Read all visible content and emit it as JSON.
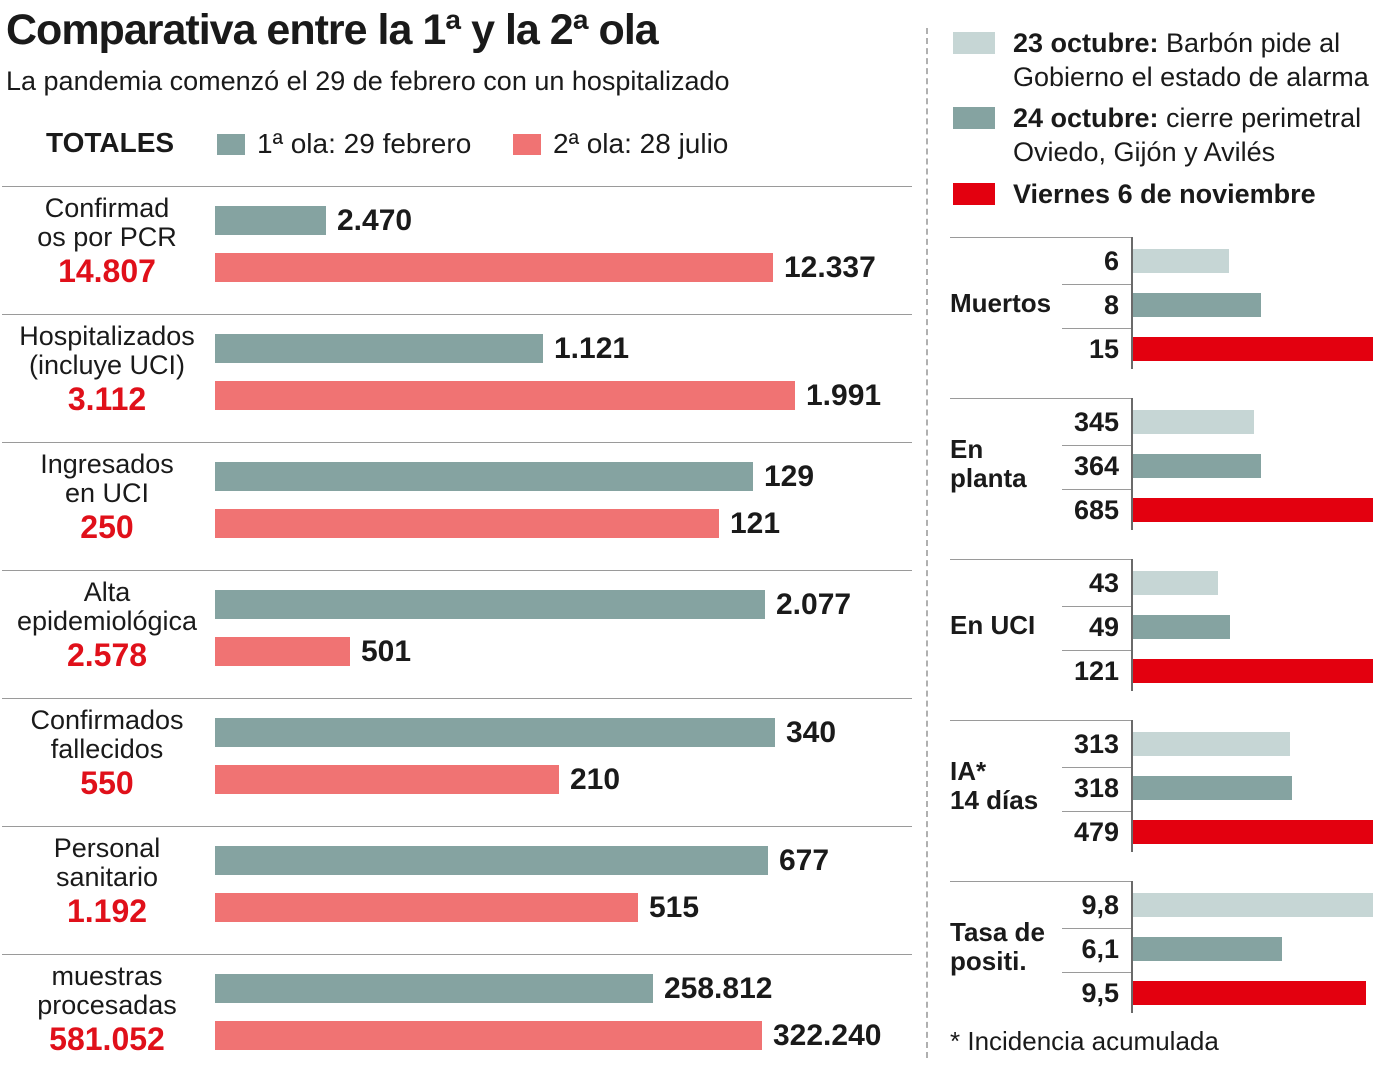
{
  "title": "Comparativa entre la 1ª y la 2ª ola",
  "subtitle": "La pandemia comenzó el 29 de febrero con un hospitalizado",
  "totales_label": "TOTALES",
  "colors": {
    "wave1": "#85a3a1",
    "wave2": "#f07373",
    "oct23": "#c6d6d5",
    "oct24": "#85a3a1",
    "nov6": "#e3000f",
    "total": "#e0101a"
  },
  "chart_data": [
    {
      "type": "bar",
      "orientation": "horizontal",
      "title": "Comparativa entre la 1ª y la 2ª ola",
      "legend": [
        "1ª ola: 29 febrero",
        "2ª ola: 28 julio"
      ],
      "categories": [
        {
          "lines": [
            "Confirmad",
            "os por PCR"
          ],
          "total": "14.807",
          "v1": 2470,
          "v2": 12337,
          "l1": "2.470",
          "l2": "12.337"
        },
        {
          "lines": [
            "Hospitalizados",
            "(incluye UCI)"
          ],
          "total": "3.112",
          "v1": 1121,
          "v2": 1991,
          "l1": "1.121",
          "l2": "1.991"
        },
        {
          "lines": [
            "Ingresados",
            "en UCI"
          ],
          "total": "250",
          "v1": 129,
          "v2": 121,
          "l1": "129",
          "l2": "121"
        },
        {
          "lines": [
            "Alta",
            "epidemiológica"
          ],
          "total": "2.578",
          "v1": 2077,
          "v2": 501,
          "l1": "2.077",
          "l2": "501"
        },
        {
          "lines": [
            "Confirmados",
            "fallecidos"
          ],
          "total": "550",
          "v1": 340,
          "v2": 210,
          "l1": "340",
          "l2": "210"
        },
        {
          "lines": [
            "Personal",
            "sanitario"
          ],
          "total": "1.192",
          "v1": 677,
          "v2": 515,
          "l1": "677",
          "l2": "515"
        },
        {
          "lines": [
            "muestras",
            "procesadas"
          ],
          "total": "581.052",
          "v1": 258812,
          "v2": 322240,
          "l1": "258.812",
          "l2": "322.240"
        }
      ]
    },
    {
      "type": "bar",
      "orientation": "horizontal",
      "legend": [
        {
          "bold": "23 octubre:",
          "text": " Barbón pide al",
          "line2": "Gobierno el estado de alarma"
        },
        {
          "bold": "24 octubre:",
          "text": " cierre perimetral",
          "line2": "Oviedo, Gijón y Avilés"
        },
        {
          "bold": "Viernes 6 de noviembre",
          "text": "",
          "line2": ""
        }
      ],
      "groups": [
        {
          "lines": [
            "Muertos"
          ],
          "values": [
            6,
            8,
            15
          ],
          "labels": [
            "6",
            "8",
            "15"
          ]
        },
        {
          "lines": [
            "En",
            "planta"
          ],
          "values": [
            345,
            364,
            685
          ],
          "labels": [
            "345",
            "364",
            "685"
          ]
        },
        {
          "lines": [
            "En UCI"
          ],
          "values": [
            43,
            49,
            121
          ],
          "labels": [
            "43",
            "49",
            "121"
          ]
        },
        {
          "lines": [
            "IA*",
            "14 días"
          ],
          "values": [
            313,
            318,
            479
          ],
          "labels": [
            "313",
            "318",
            "479"
          ]
        },
        {
          "lines": [
            "Tasa de",
            "positi."
          ],
          "values": [
            9.8,
            6.1,
            9.5
          ],
          "labels": [
            "9,8",
            "6,1",
            "9,5"
          ]
        }
      ],
      "footnote": "* Incidencia acumulada"
    }
  ]
}
